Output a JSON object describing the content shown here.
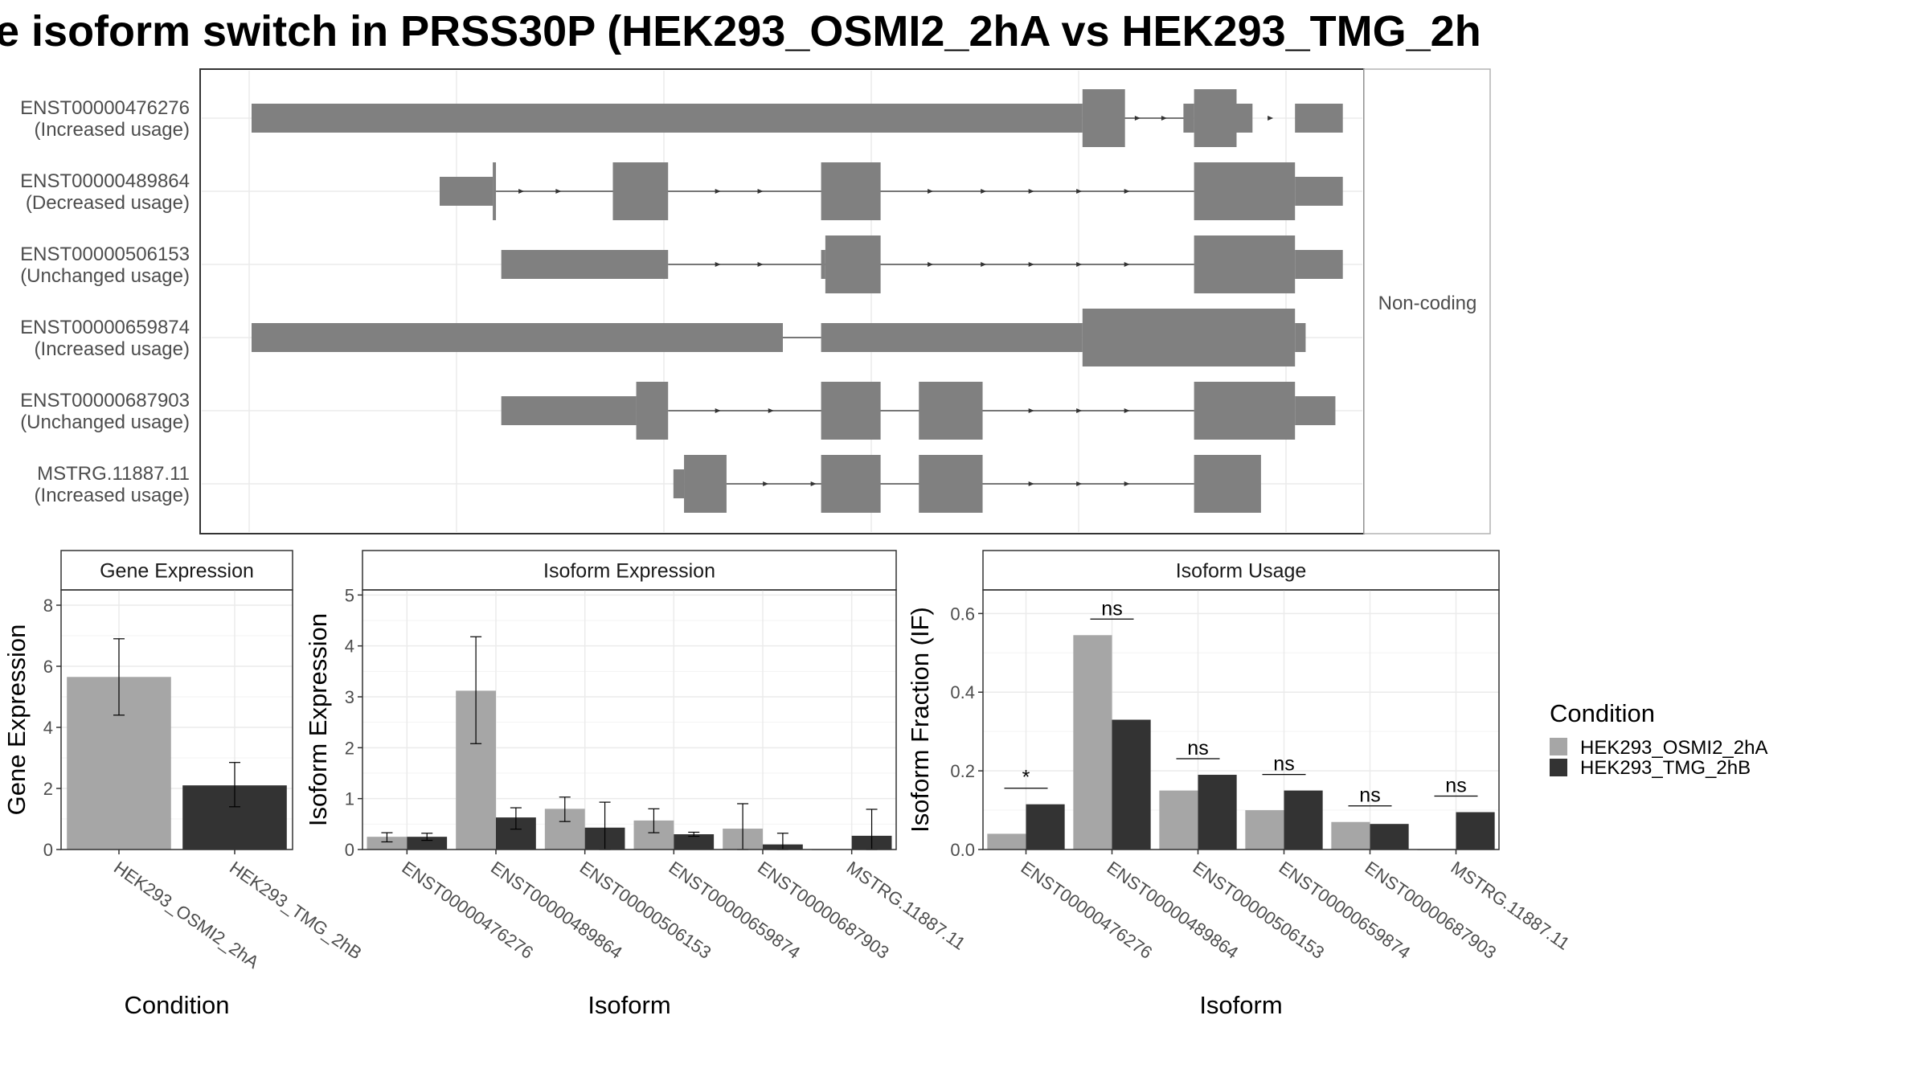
{
  "title": "e isoform switch in PRSS30P (HEK293_OSMI2_2hA vs HEK293_TMG_2h",
  "colors": {
    "condA": "#a6a6a6",
    "condB": "#333333",
    "exon": "#808080",
    "grid": "#ebebeb",
    "border": "#333333",
    "strip_bg": "#ffffff"
  },
  "structure": {
    "facet_label": "Non-coding",
    "x_range": [
      0,
      1000
    ],
    "isoforms": [
      {
        "id": "ENST00000476276",
        "usage": "(Increased usage)",
        "lines": [
          [
            820,
            887
          ]
        ],
        "utr": [
          [
            0,
            782
          ],
          [
            877,
            887
          ],
          [
            927,
            942
          ],
          [
            982,
            1027
          ]
        ],
        "cds": [
          [
            782,
            822
          ],
          [
            887,
            927
          ]
        ],
        "arrows": [
          835,
          860,
          885,
          910,
          935,
          960
        ]
      },
      {
        "id": "ENST00000489864",
        "usage": "(Decreased usage)",
        "lines": [
          [
            230,
            887
          ]
        ],
        "utr": [
          [
            177,
            227
          ],
          [
            982,
            1027
          ]
        ],
        "cds": [
          [
            227,
            230
          ],
          [
            340,
            392
          ],
          [
            536,
            592
          ],
          [
            887,
            982
          ]
        ],
        "arrows": [
          255,
          290,
          440,
          480,
          640,
          690,
          735,
          780,
          825
        ]
      },
      {
        "id": "ENST00000506153",
        "usage": "(Unchanged usage)",
        "lines": [
          [
            392,
            887
          ]
        ],
        "utr": [
          [
            235,
            392
          ],
          [
            536,
            540
          ],
          [
            982,
            1027
          ]
        ],
        "cds": [
          [
            540,
            592
          ],
          [
            887,
            982
          ]
        ],
        "arrows": [
          440,
          480,
          640,
          690,
          735,
          780,
          825
        ]
      },
      {
        "id": "ENST00000659874",
        "usage": "(Increased usage)",
        "lines": [
          [
            500,
            536
          ]
        ],
        "utr": [
          [
            0,
            500
          ],
          [
            536,
            782
          ],
          [
            982,
            992
          ]
        ],
        "cds": [
          [
            782,
            982
          ]
        ],
        "arrows": []
      },
      {
        "id": "ENST00000687903",
        "usage": "(Unchanged usage)",
        "lines": [
          [
            392,
            887
          ]
        ],
        "utr": [
          [
            235,
            362
          ],
          [
            982,
            1020
          ]
        ],
        "cds": [
          [
            362,
            392
          ],
          [
            536,
            592
          ],
          [
            628,
            688
          ],
          [
            887,
            982
          ]
        ],
        "arrows": [
          440,
          490,
          735,
          780,
          825
        ]
      },
      {
        "id": "MSTRG.11887.11",
        "usage": "(Increased usage)",
        "lines": [
          [
            447,
            887
          ]
        ],
        "utr": [
          [
            397,
            407
          ]
        ],
        "cds": [
          [
            407,
            447
          ],
          [
            536,
            592
          ],
          [
            628,
            688
          ],
          [
            887,
            950
          ]
        ],
        "arrows": [
          485,
          530,
          735,
          780,
          825
        ]
      }
    ]
  },
  "chart_data": [
    {
      "type": "bar",
      "title": "Gene Expression",
      "xlabel": "Condition",
      "ylabel": "Gene Expression",
      "ylim": [
        0,
        8.5
      ],
      "yticks": [
        "0",
        "2",
        "4",
        "6",
        "8"
      ],
      "categories": [
        "HEK293_OSMI2_2hA",
        "HEK293_TMG_2hB"
      ],
      "values": [
        5.65,
        2.1
      ],
      "err": [
        [
          4.4,
          6.9
        ],
        [
          1.4,
          2.85
        ]
      ]
    },
    {
      "type": "bar",
      "title": "Isoform Expression",
      "xlabel": "Isoform",
      "ylabel": "Isoform Expression",
      "ylim": [
        0,
        5.1
      ],
      "yticks": [
        "0",
        "1",
        "2",
        "3",
        "4",
        "5"
      ],
      "categories": [
        "ENST00000476276",
        "ENST00000489864",
        "ENST00000506153",
        "ENST00000659874",
        "ENST00000687903",
        "MSTRG.11887.11"
      ],
      "series": [
        {
          "name": "HEK293_OSMI2_2hA",
          "values": [
            0.25,
            3.12,
            0.8,
            0.57,
            0.41,
            0.0
          ],
          "err": [
            [
              0.15,
              0.33
            ],
            [
              2.08,
              4.18
            ],
            [
              0.55,
              1.03
            ],
            [
              0.33,
              0.8
            ],
            [
              0.0,
              0.9
            ],
            [
              0.0,
              0.0
            ]
          ]
        },
        {
          "name": "HEK293_TMG_2hB",
          "values": [
            0.25,
            0.63,
            0.43,
            0.3,
            0.1,
            0.27
          ],
          "err": [
            [
              0.18,
              0.32
            ],
            [
              0.4,
              0.82
            ],
            [
              0.0,
              0.93
            ],
            [
              0.26,
              0.34
            ],
            [
              0.0,
              0.32
            ],
            [
              0.0,
              0.79
            ]
          ]
        }
      ]
    },
    {
      "type": "bar",
      "title": "Isoform Usage",
      "xlabel": "Isoform",
      "ylabel": "Isoform Fraction (IF)",
      "ylim": [
        0,
        0.66
      ],
      "yticks": [
        "0.0",
        "0.2",
        "0.4",
        "0.6"
      ],
      "categories": [
        "ENST00000476276",
        "ENST00000489864",
        "ENST00000506153",
        "ENST00000659874",
        "ENST00000687903",
        "MSTRG.11887.11"
      ],
      "series": [
        {
          "name": "HEK293_OSMI2_2hA",
          "values": [
            0.04,
            0.545,
            0.15,
            0.1,
            0.07,
            0.0
          ]
        },
        {
          "name": "HEK293_TMG_2hB",
          "values": [
            0.115,
            0.33,
            0.19,
            0.15,
            0.065,
            0.095
          ]
        }
      ],
      "significance": [
        "*",
        "ns",
        "ns",
        "ns",
        "ns",
        "ns"
      ]
    }
  ],
  "legend": {
    "title": "Condition",
    "items": [
      "HEK293_OSMI2_2hA",
      "HEK293_TMG_2hB"
    ]
  }
}
